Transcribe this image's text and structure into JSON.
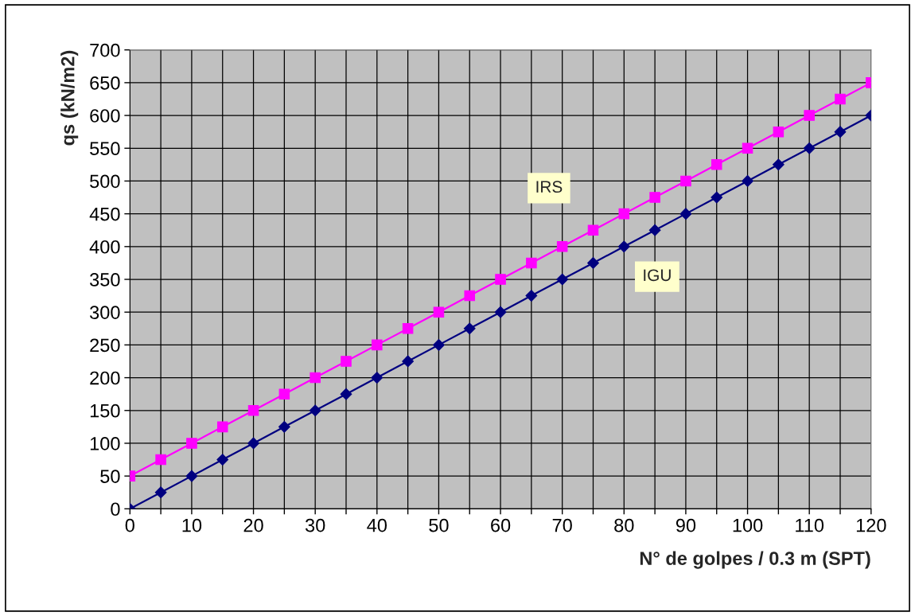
{
  "chart_data": {
    "type": "line",
    "xlabel": "N° de golpes / 0.3 m (SPT)",
    "ylabel": "qs (kN/m2)",
    "x": [
      0,
      5,
      10,
      15,
      20,
      25,
      30,
      35,
      40,
      45,
      50,
      55,
      60,
      65,
      70,
      75,
      80,
      85,
      90,
      95,
      100,
      105,
      110,
      115,
      120
    ],
    "series": [
      {
        "name": "IRS",
        "color": "#ff00ff",
        "marker": "square",
        "values": [
          50,
          75,
          100,
          125,
          150,
          175,
          200,
          225,
          250,
          275,
          300,
          325,
          350,
          375,
          400,
          425,
          450,
          475,
          500,
          525,
          550,
          575,
          600,
          625,
          650
        ]
      },
      {
        "name": "IGU",
        "color": "#000080",
        "marker": "diamond",
        "values": [
          0,
          25,
          50,
          75,
          100,
          125,
          150,
          175,
          200,
          225,
          250,
          275,
          300,
          325,
          350,
          375,
          400,
          425,
          450,
          475,
          500,
          525,
          550,
          575,
          600
        ]
      }
    ],
    "xlim": [
      0,
      120
    ],
    "ylim": [
      0,
      700
    ],
    "xticks": [
      0,
      {
        "value": 5,
        "label": null
      },
      10,
      {
        "value": 15,
        "label": null
      },
      20,
      {
        "value": 25,
        "label": null
      },
      30,
      {
        "value": 35,
        "label": null
      },
      40,
      {
        "value": 45,
        "label": null
      },
      50,
      {
        "value": 55,
        "label": null
      },
      60,
      {
        "value": 65,
        "label": null
      },
      70,
      {
        "value": 75,
        "label": null
      },
      80,
      {
        "value": 85,
        "label": null
      },
      90,
      {
        "value": 95,
        "label": null
      },
      100,
      {
        "value": 105,
        "label": null
      },
      110,
      {
        "value": 115,
        "label": null
      },
      120
    ],
    "yticks": [
      0,
      50,
      100,
      150,
      200,
      250,
      300,
      350,
      400,
      450,
      500,
      550,
      600,
      650,
      700
    ],
    "grid": true,
    "legend": false
  }
}
